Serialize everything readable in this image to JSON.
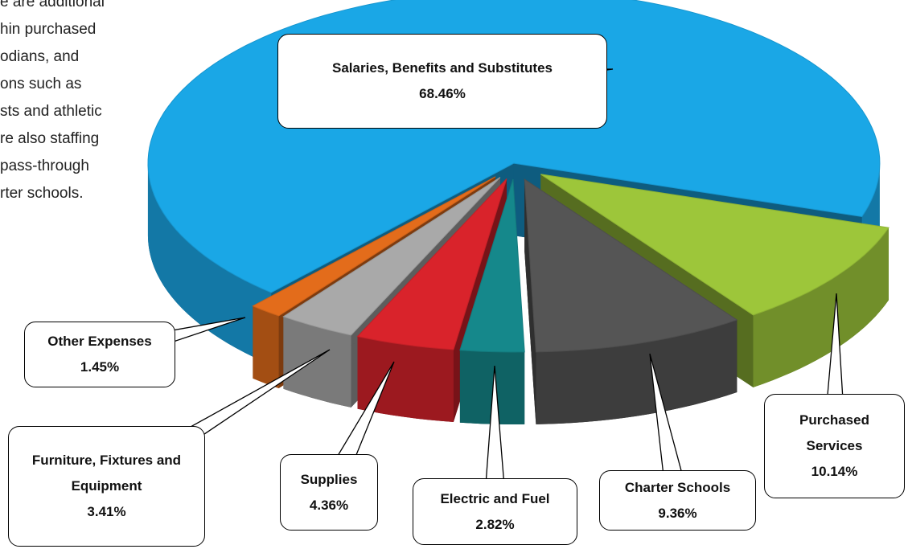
{
  "chart_data": {
    "type": "pie3d",
    "categories": [
      "Purchased Services",
      "Charter Schools",
      "Electric and Fuel",
      "Supplies",
      "Furniture, Fixtures and Equipment",
      "Other Expenses",
      "Salaries, Benefits and Substitutes"
    ],
    "values": [
      10.14,
      9.36,
      2.82,
      4.36,
      3.41,
      1.45,
      68.46
    ],
    "value_labels": [
      "10.14%",
      "9.36%",
      "2.82%",
      "4.36%",
      "3.41%",
      "1.45%",
      "68.46%"
    ],
    "colors": [
      "#9dc63a",
      "#555555",
      "#15888b",
      "#d9232b",
      "#a9a9a9",
      "#e36c1b",
      "#1aa7e6"
    ]
  },
  "side_text": [
    "e are additional",
    "hin purchased",
    "odians, and",
    "ons such as",
    "sts and athletic",
    "re also staffing",
    "pass-through",
    "rter schools."
  ]
}
